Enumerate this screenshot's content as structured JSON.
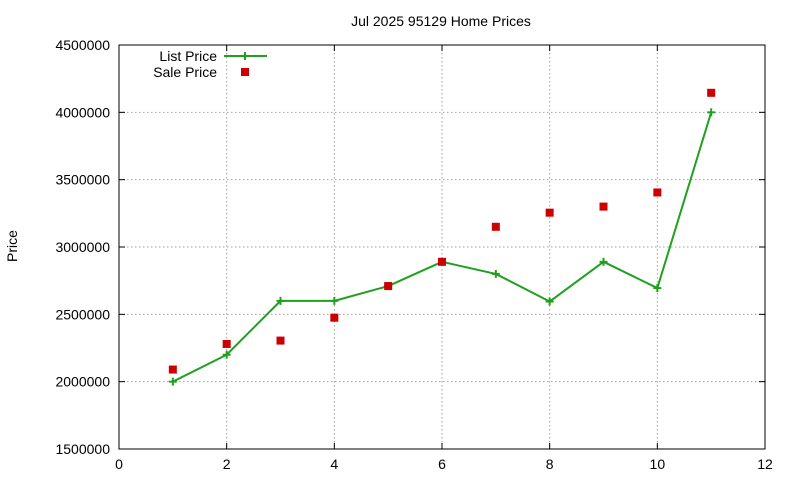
{
  "chart_data": {
    "type": "line",
    "title": "Jul 2025 95129 Home Prices",
    "xlabel": "",
    "ylabel": "Price",
    "xlim": [
      0,
      12
    ],
    "ylim": [
      1500000,
      4500000
    ],
    "x_ticks": [
      0,
      2,
      4,
      6,
      8,
      10,
      12
    ],
    "y_ticks": [
      1500000,
      2000000,
      2500000,
      3000000,
      3500000,
      4000000,
      4500000
    ],
    "grid": true,
    "legend_position": "top-left",
    "series": [
      {
        "name": "List Price",
        "style": "line-with-plus-markers",
        "color": "#1fa01f",
        "x": [
          1,
          2,
          3,
          4,
          5,
          6,
          7,
          8,
          9,
          10,
          11
        ],
        "values": [
          2000000,
          2200000,
          2600000,
          2600000,
          2710000,
          2890000,
          2800000,
          2595000,
          2890000,
          2695000,
          4000000
        ]
      },
      {
        "name": "Sale Price",
        "style": "square-points",
        "color": "#cc0000",
        "x": [
          1,
          2,
          3,
          4,
          5,
          6,
          7,
          8,
          9,
          10,
          11
        ],
        "values": [
          2090000,
          2280000,
          2305000,
          2475000,
          2710000,
          2890000,
          3150000,
          3255000,
          3300000,
          3405000,
          4145000
        ]
      }
    ]
  }
}
